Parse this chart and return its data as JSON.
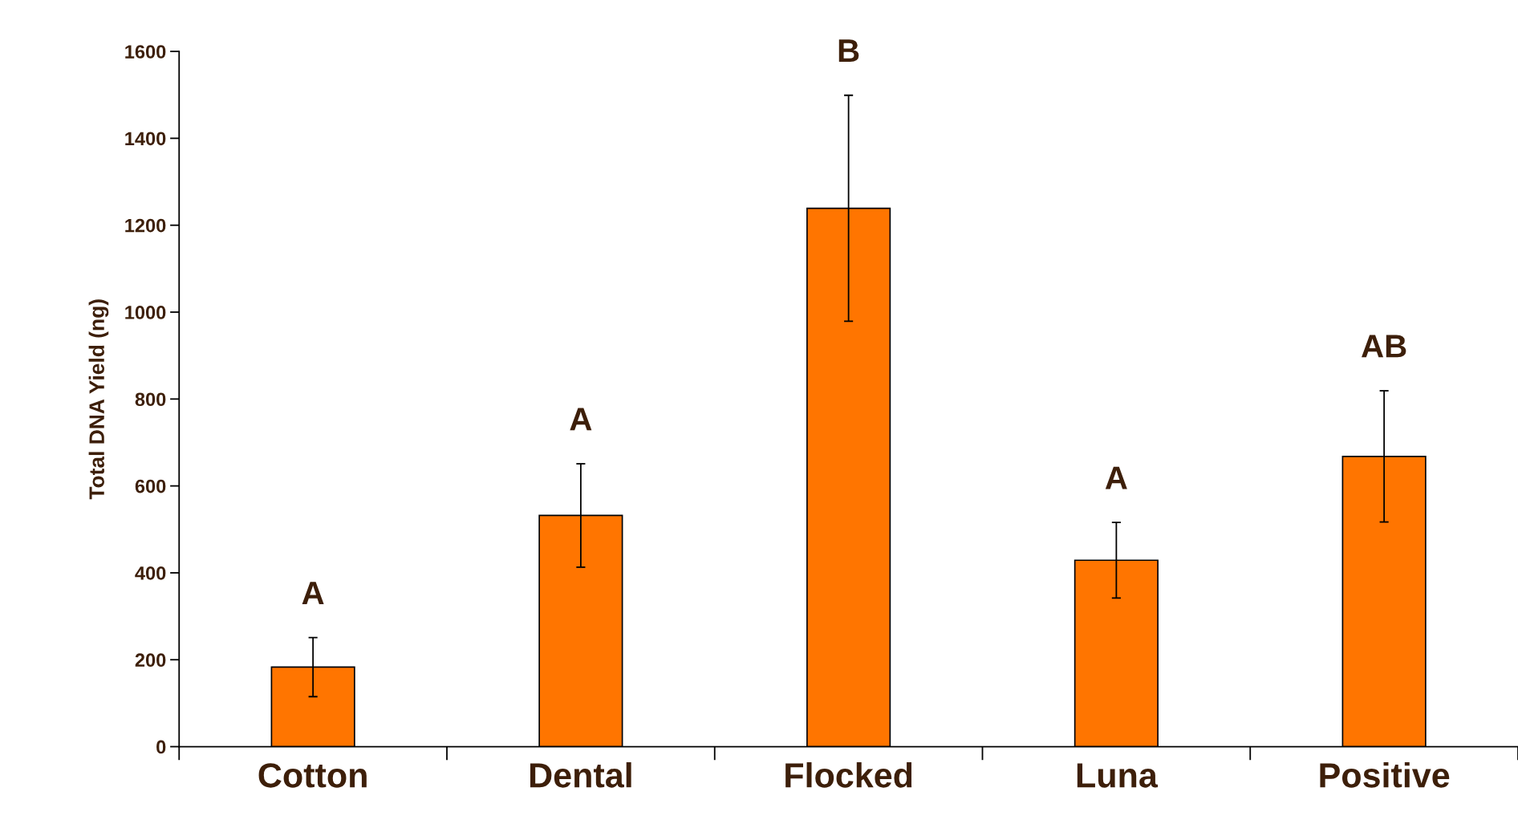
{
  "chart_data": {
    "type": "bar",
    "ylabel": "Total DNA Yield (ng)",
    "categories": [
      "Cotton",
      "Dental",
      "Flocked",
      "Luna",
      "Positive"
    ],
    "values": [
      183,
      532,
      1239,
      429,
      668
    ],
    "errors": [
      68,
      119,
      260,
      87,
      151
    ],
    "color": "#ff7500",
    "ylim": [
      0,
      1600
    ],
    "yticks": [
      0,
      200,
      400,
      600,
      800,
      1000,
      1200,
      1400,
      1600
    ],
    "grid": false,
    "legend": false,
    "annotations": [
      "A",
      "A",
      "B",
      "A",
      "AB"
    ]
  }
}
